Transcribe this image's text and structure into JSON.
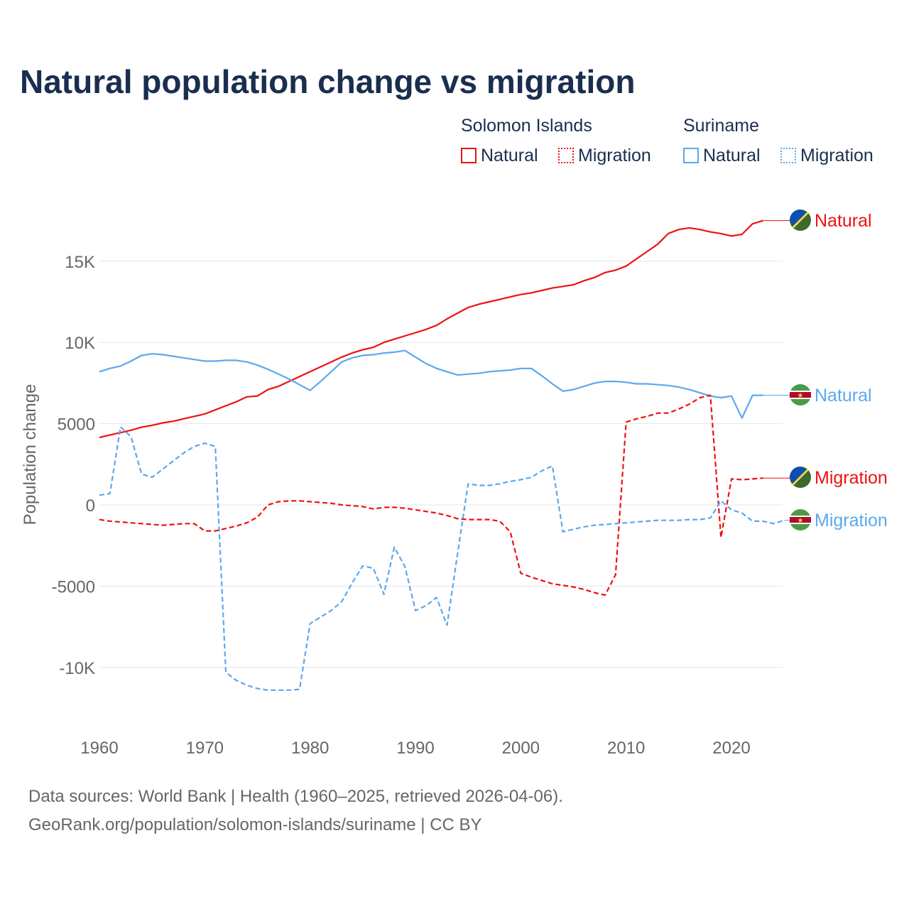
{
  "title": "Natural population change vs migration",
  "legend": {
    "groups": [
      {
        "name": "Solomon Islands",
        "items": [
          "Natural",
          "Migration"
        ],
        "color": "#ee1111"
      },
      {
        "name": "Suriname",
        "items": [
          "Natural",
          "Migration"
        ],
        "color": "#5ba8ee"
      }
    ]
  },
  "footer": {
    "line1": "Data sources: World Bank | Health (1960–2025, retrieved 2026-04-06).",
    "line2": "GeoRank.org/population/solomon-islands/suriname | CC BY"
  },
  "chart_data": {
    "type": "line",
    "title": "Natural population change vs migration",
    "xlabel": "",
    "ylabel": "Population change",
    "xlim": [
      1960,
      2025
    ],
    "ylim": [
      -12500,
      19000
    ],
    "xticks": [
      1960,
      1970,
      1980,
      1990,
      2000,
      2010,
      2020
    ],
    "yticks": [
      {
        "v": -10000,
        "l": "-10K"
      },
      {
        "v": -5000,
        "l": "-5000"
      },
      {
        "v": 0,
        "l": "0"
      },
      {
        "v": 5000,
        "l": "5000"
      },
      {
        "v": 10000,
        "l": "10K"
      },
      {
        "v": 15000,
        "l": "15K"
      }
    ],
    "x_start": 1960,
    "series": [
      {
        "name": "Solomon Islands Natural",
        "label": "Natural",
        "color": "#ee1111",
        "dash": false,
        "flag": "solomon",
        "values": [
          4150,
          4300,
          4450,
          4600,
          4780,
          4900,
          5050,
          5150,
          5300,
          5450,
          5600,
          5850,
          6100,
          6350,
          6650,
          6700,
          7100,
          7300,
          7600,
          7900,
          8200,
          8500,
          8800,
          9100,
          9350,
          9550,
          9700,
          10000,
          10200,
          10400,
          10600,
          10800,
          11050,
          11450,
          11800,
          12150,
          12350,
          12500,
          12650,
          12800,
          12950,
          13050,
          13200,
          13350,
          13450,
          13550,
          13800,
          14000,
          14300,
          14450,
          14700,
          15150,
          15600,
          16050,
          16700,
          16950,
          17050,
          16950,
          16800,
          16700,
          16550,
          16650,
          17300,
          17500
        ]
      },
      {
        "name": "Suriname Natural",
        "label": "Natural",
        "color": "#5ba8ee",
        "dash": false,
        "flag": "suriname",
        "values": [
          8200,
          8400,
          8550,
          8850,
          9200,
          9300,
          9250,
          9150,
          9050,
          8950,
          8850,
          8850,
          8900,
          8900,
          8800,
          8600,
          8350,
          8050,
          7750,
          7400,
          7050,
          7600,
          8200,
          8800,
          9050,
          9200,
          9250,
          9350,
          9400,
          9500,
          9100,
          8700,
          8400,
          8200,
          8000,
          8050,
          8100,
          8200,
          8250,
          8300,
          8400,
          8400,
          7950,
          7450,
          7000,
          7100,
          7300,
          7500,
          7600,
          7600,
          7550,
          7450,
          7450,
          7400,
          7350,
          7250,
          7100,
          6900,
          6700,
          6600,
          6700,
          5350,
          6750,
          6750
        ]
      },
      {
        "name": "Solomon Islands Migration",
        "label": "Migration",
        "color": "#ee1111",
        "dash": true,
        "flag": "solomon",
        "values": [
          -900,
          -1000,
          -1050,
          -1100,
          -1150,
          -1200,
          -1250,
          -1200,
          -1150,
          -1150,
          -1600,
          -1600,
          -1450,
          -1300,
          -1100,
          -750,
          0,
          200,
          250,
          250,
          200,
          150,
          100,
          0,
          -50,
          -100,
          -250,
          -150,
          -150,
          -200,
          -300,
          -400,
          -500,
          -650,
          -850,
          -900,
          -900,
          -900,
          -1000,
          -1650,
          -4200,
          -4450,
          -4650,
          -4850,
          -4950,
          -5050,
          -5200,
          -5400,
          -5550,
          -4300,
          5100,
          5300,
          5450,
          5650,
          5650,
          5900,
          6200,
          6600,
          6750,
          -2000,
          1600,
          1550,
          1600,
          1650
        ]
      },
      {
        "name": "Suriname Migration",
        "label": "Migration",
        "color": "#5ba8ee",
        "dash": true,
        "flag": "suriname",
        "values": [
          600,
          700,
          4800,
          4200,
          1900,
          1700,
          2200,
          2700,
          3200,
          3600,
          3800,
          3600,
          -10300,
          -10800,
          -11100,
          -11300,
          -11400,
          -11400,
          -11400,
          -11350,
          -7300,
          -6900,
          -6500,
          -5950,
          -4800,
          -3750,
          -3900,
          -5500,
          -2600,
          -3800,
          -6500,
          -6200,
          -5700,
          -7400,
          -3000,
          1300,
          1200,
          1200,
          1300,
          1450,
          1550,
          1700,
          2100,
          2400,
          -1650,
          -1500,
          -1350,
          -1250,
          -1200,
          -1150,
          -1100,
          -1050,
          -1000,
          -950,
          -950,
          -950,
          -900,
          -900,
          -800,
          250,
          -300,
          -500,
          -1000,
          -1000,
          -1150,
          -950
        ]
      }
    ]
  }
}
